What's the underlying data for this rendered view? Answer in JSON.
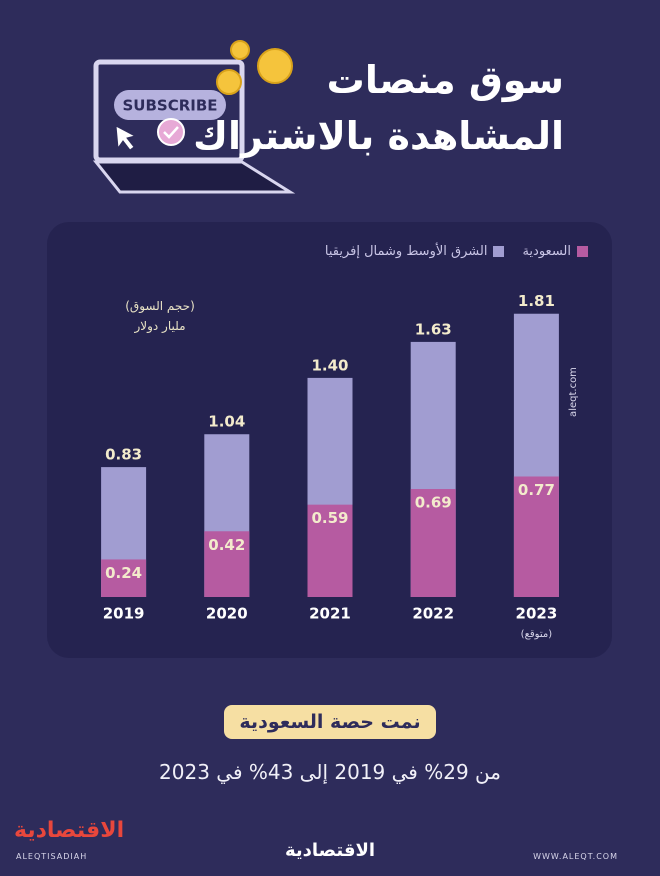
{
  "header": {
    "title_line1": "سوق منصات",
    "title_line2": "المشاهدة بالاشتراك",
    "icon_text": "SUBSCRIBE"
  },
  "chart_data": {
    "type": "bar",
    "unit_line1": "(حجم السوق)",
    "unit_line2": "مليار دولار",
    "categories": [
      "2019",
      "2020",
      "2021",
      "2022",
      "2023"
    ],
    "category_note": "(متوقع)",
    "series": [
      {
        "name": "الشرق الأوسط وشمال إفريقيا",
        "color": "#a19dd1",
        "values": [
          0.83,
          1.04,
          1.4,
          1.63,
          1.81
        ],
        "value_labels": [
          "0.83",
          "1.04",
          "1.40",
          "1.63",
          "1.81"
        ]
      },
      {
        "name": "السعودية",
        "color": "#b65ba1",
        "values": [
          0.24,
          0.42,
          0.59,
          0.69,
          0.77
        ],
        "value_labels": [
          "0.24",
          "0.42",
          "0.59",
          "0.69",
          "0.77"
        ]
      }
    ],
    "ylim": [
      0,
      2
    ],
    "watermark": "aleqt.com"
  },
  "summary": {
    "badge": "نمت حصة السعودية",
    "text": "من 29% في 2019 إلى 43% في 2023"
  },
  "footer": {
    "logo_left": "الاقتصادية",
    "handle": "ALEQTISADIAH",
    "logo_center": "الاقتصادية",
    "website": "WWW.ALEQT.COM"
  }
}
